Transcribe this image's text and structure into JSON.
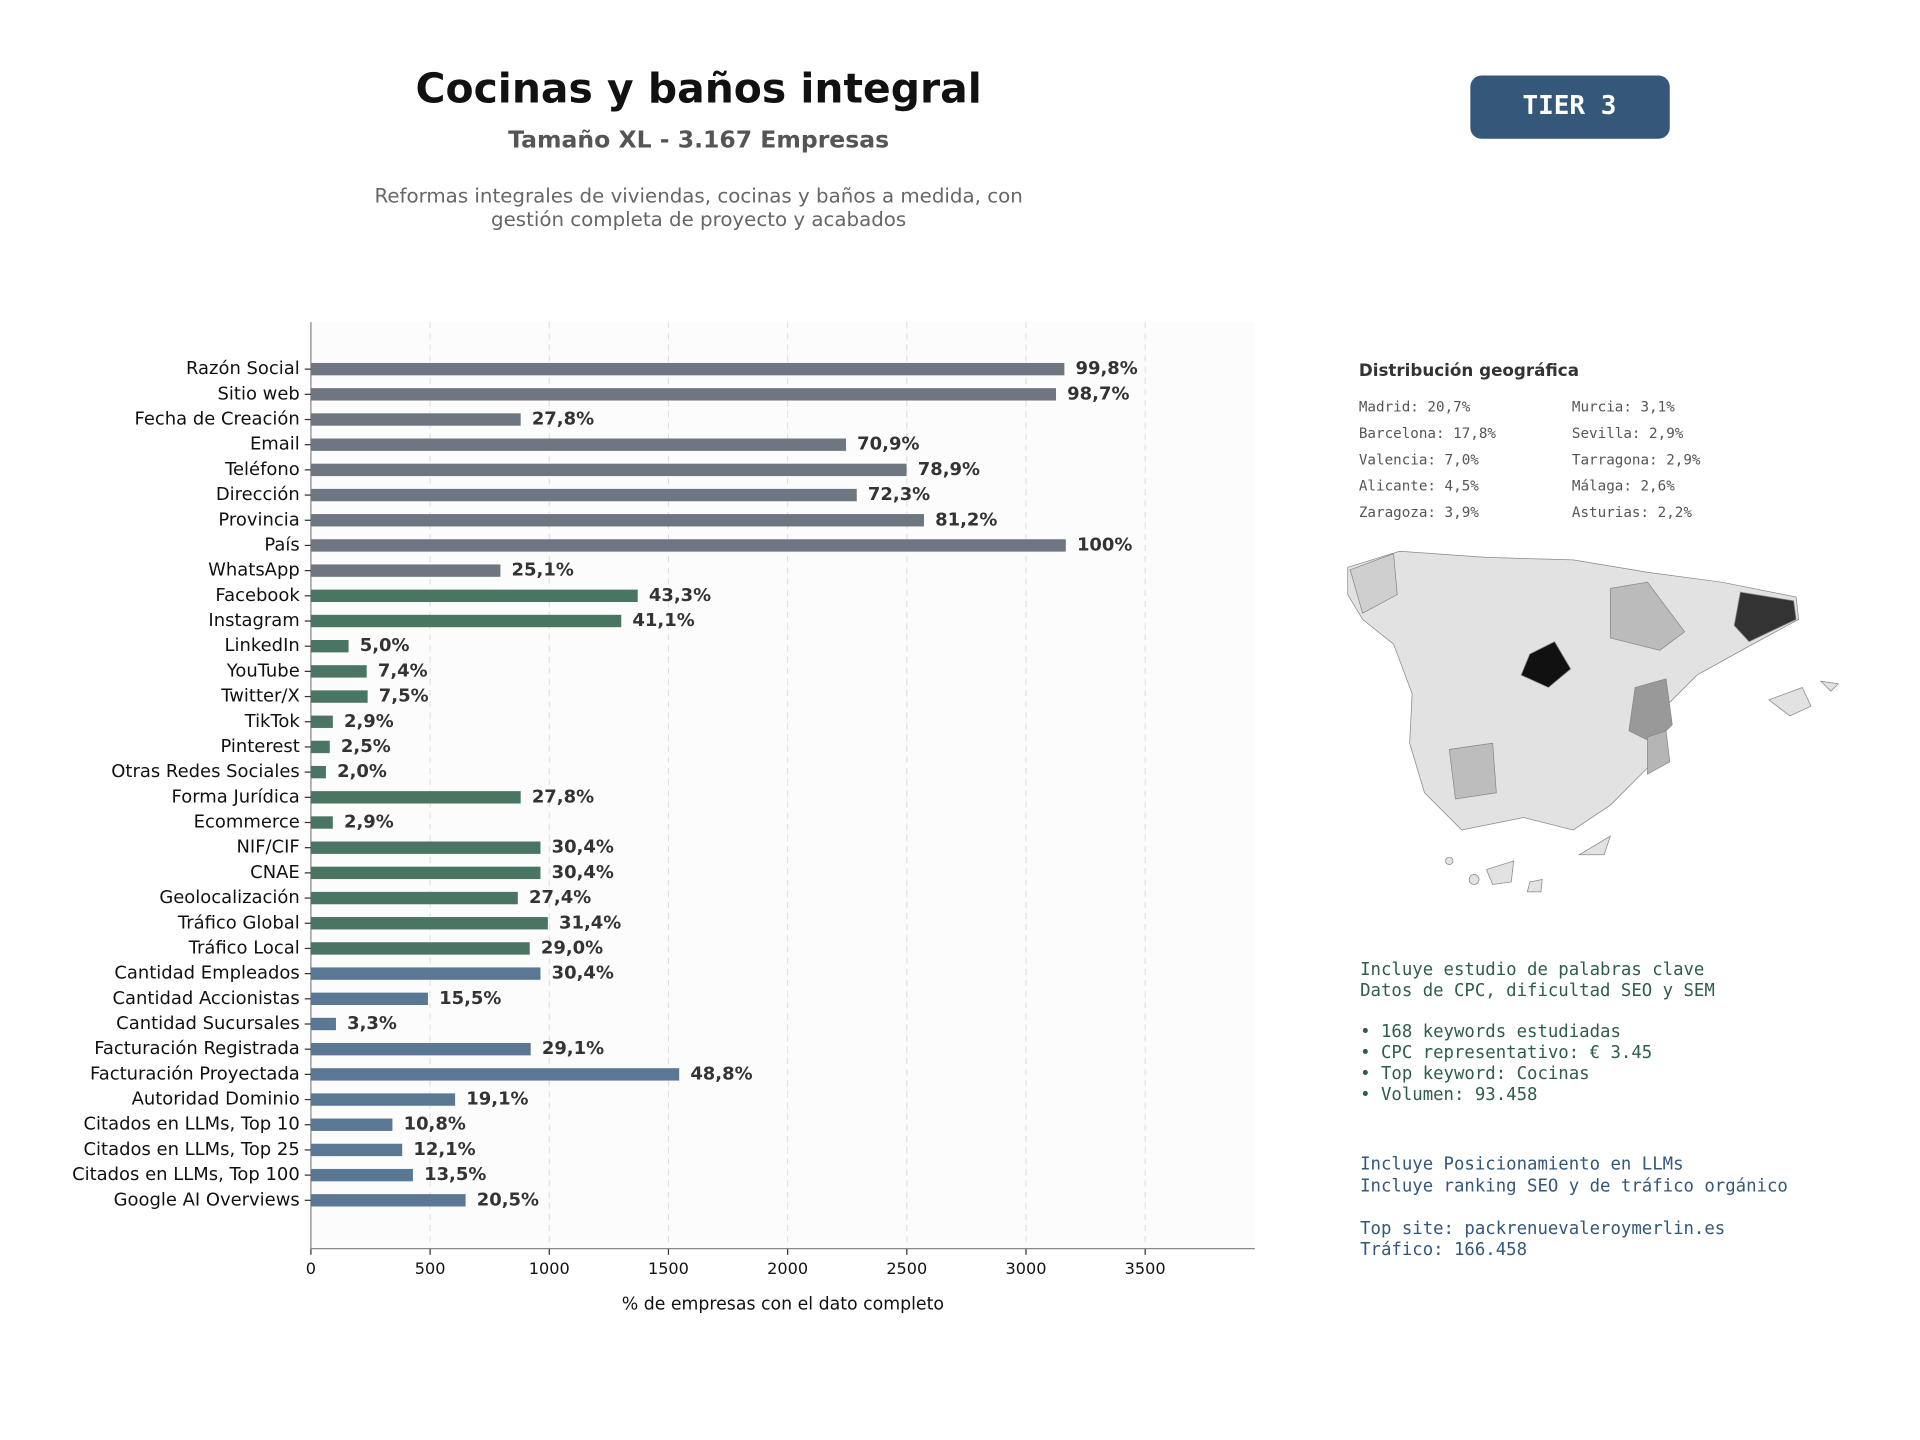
{
  "header": {
    "title": "Cocinas y baños integral",
    "subtitle": "Tamaño XL - 3.167 Empresas",
    "description": [
      "Reformas integrales de viviendas, cocinas y baños a medida, con",
      "gestión completa de proyecto y acabados"
    ],
    "badge": "TIER 3"
  },
  "chart_data": {
    "type": "barh",
    "xlabel": "% de empresas con el dato completo",
    "categories": [
      "Razón Social",
      "Sitio web",
      "Fecha de Creación",
      "Email",
      "Teléfono",
      "Dirección",
      "Provincia",
      "País",
      "WhatsApp",
      "Facebook",
      "Instagram",
      "LinkedIn",
      "YouTube",
      "Twitter/X",
      "TikTok",
      "Pinterest",
      "Otras Redes Sociales",
      "Forma Jurídica",
      "Ecommerce",
      "NIF/CIF",
      "CNAE",
      "Geolocalización",
      "Tráfico Global",
      "Tráfico Local",
      "Cantidad Empleados",
      "Cantidad Accionistas",
      "Cantidad Sucursales",
      "Facturación Registrada",
      "Facturación Proyectada",
      "Autoridad Dominio",
      "Citados en LLMs, Top 10",
      "Citados en LLMs, Top 25",
      "Citados en LLMs, Top 100",
      "Google AI Overviews"
    ],
    "values": [
      3161,
      3126,
      880,
      2245,
      2499,
      2290,
      2572,
      3167,
      795,
      1371,
      1302,
      158,
      234,
      238,
      92,
      79,
      63,
      880,
      92,
      963,
      963,
      868,
      994,
      918,
      963,
      491,
      105,
      922,
      1545,
      605,
      342,
      383,
      428,
      649
    ],
    "value_labels": [
      "99,8%",
      "98,7%",
      "27,8%",
      "70,9%",
      "78,9%",
      "72,3%",
      "81,2%",
      "100%",
      "25,1%",
      "43,3%",
      "41,1%",
      "5,0%",
      "7,4%",
      "7,5%",
      "2,9%",
      "2,5%",
      "2,0%",
      "27,8%",
      "2,9%",
      "30,4%",
      "30,4%",
      "27,4%",
      "31,4%",
      "29,0%",
      "30,4%",
      "15,5%",
      "3,3%",
      "29,1%",
      "48,8%",
      "19,1%",
      "10,8%",
      "12,1%",
      "13,5%",
      "20,5%"
    ],
    "colors": [
      "#6e7781",
      "#6e7781",
      "#6e7781",
      "#6e7781",
      "#6e7781",
      "#6e7781",
      "#6e7781",
      "#6e7781",
      "#6e7781",
      "#4a7563",
      "#4a7563",
      "#4a7563",
      "#4a7563",
      "#4a7563",
      "#4a7563",
      "#4a7563",
      "#4a7563",
      "#4a7563",
      "#4a7563",
      "#4a7563",
      "#4a7563",
      "#4a7563",
      "#4a7563",
      "#4a7563",
      "#5a7893",
      "#5a7893",
      "#5a7893",
      "#5a7893",
      "#5a7893",
      "#5a7893",
      "#5a7893",
      "#5a7893",
      "#5a7893",
      "#5a7893"
    ],
    "xlim": [
      0,
      3960
    ],
    "xticks": [
      0,
      500,
      1000,
      1500,
      2000,
      2500,
      3000,
      3500
    ],
    "grid": true
  },
  "geo": {
    "title": "Distribución geográfica",
    "items": [
      "Madrid: 20,7%",
      "Barcelona: 17,8%",
      "Valencia: 7,0%",
      "Alicante: 4,5%",
      "Zaragoza: 3,9%",
      "Murcia: 3,1%",
      "Sevilla: 2,9%",
      "Tarragona: 2,9%",
      "Málaga: 2,6%",
      "Asturias: 2,2%"
    ]
  },
  "keywords": [
    "Incluye estudio de palabras clave",
    "Datos de CPC, dificultad SEO y SEM",
    "• 168 keywords estudiadas",
    "• CPC representativo: € 3.45",
    "• Top keyword: Cocinas",
    "• Volumen: 93.458"
  ],
  "llm": [
    "Incluye Posicionamiento en LLMs",
    "Incluye ranking SEO y de tráfico orgánico",
    "Top site: packrenuevaleroymerlin.es",
    "Tráfico: 166.458"
  ]
}
